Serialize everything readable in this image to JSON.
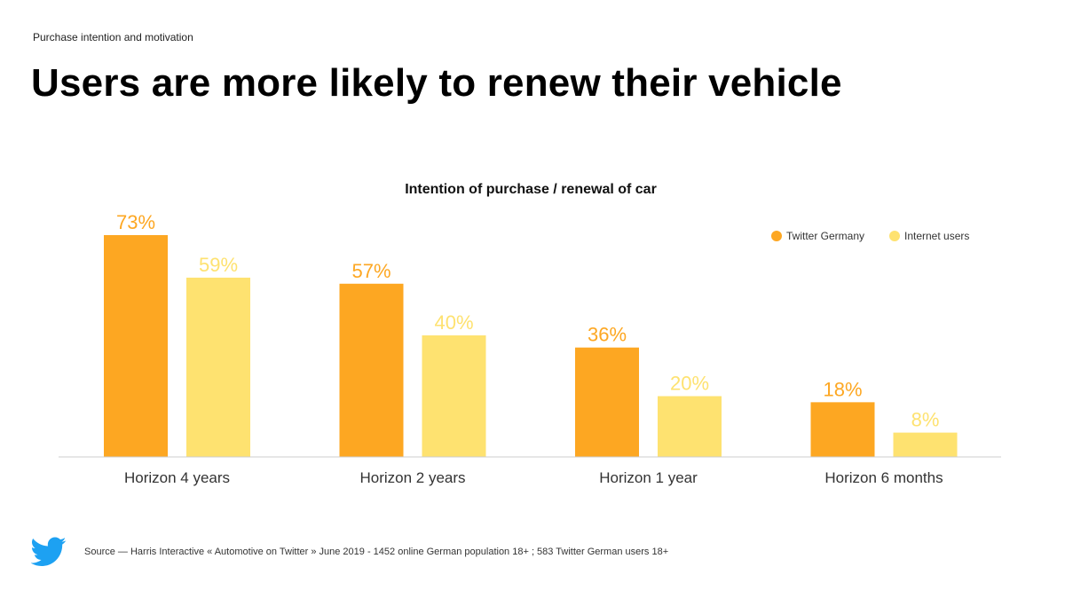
{
  "header": {
    "eyebrow": "Purchase intention and motivation",
    "title": "Users are more likely to renew their vehicle"
  },
  "colors": {
    "twitter_germany": "#FDA722",
    "internet_users": "#FEE270",
    "axis": "#cccccc",
    "twitter_blue": "#1DA1F2"
  },
  "chart_data": {
    "type": "bar",
    "title": "Intention of purchase / renewal of car",
    "categories": [
      "Horizon 4 years",
      "Horizon 2 years",
      "Horizon 1 year",
      "Horizon 6 months"
    ],
    "series": [
      {
        "name": "Twitter Germany",
        "values": [
          73,
          57,
          36,
          18
        ],
        "labels": [
          "73%",
          "57%",
          "36%",
          "18%"
        ]
      },
      {
        "name": "Internet users",
        "values": [
          59,
          40,
          20,
          8
        ],
        "labels": [
          "59%",
          "40%",
          "20%",
          "8%"
        ]
      }
    ],
    "xlabel": "",
    "ylabel": "",
    "ylim": [
      0,
      100
    ],
    "grid": false,
    "legend": "top-right"
  },
  "footer": {
    "icon": "twitter-bird-icon",
    "source": "Source — Harris Interactive « Automotive on Twitter » June 2019 - 1452 online German population 18+ ; 583 Twitter German users 18+"
  }
}
